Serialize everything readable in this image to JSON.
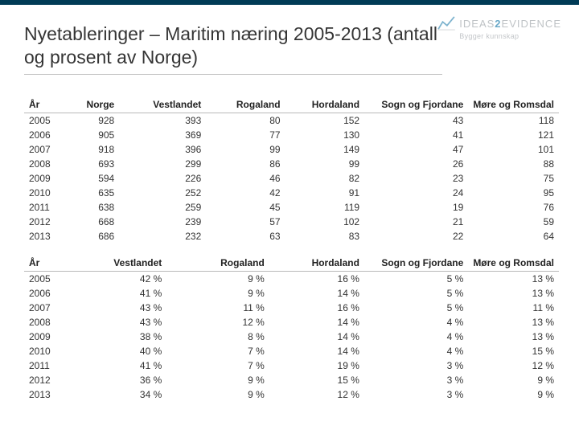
{
  "brand": {
    "name_a": "IDEAS",
    "name_b": "2",
    "name_c": "EVIDENCE",
    "tagline": "Bygger kunnskap",
    "logo_stroke": "#7fb4cf",
    "topbar_color": "#003b56"
  },
  "title": "Nyetableringer – Maritim næring 2005-2013 (antall og prosent av Norge)",
  "table1": {
    "columns": [
      "År",
      "Norge",
      "Vestlandet",
      "Rogaland",
      "Hordaland",
      "Sogn og Fjordane",
      "Møre og Romsdal"
    ],
    "rows": [
      [
        "2005",
        "928",
        "393",
        "80",
        "152",
        "43",
        "118"
      ],
      [
        "2006",
        "905",
        "369",
        "77",
        "130",
        "41",
        "121"
      ],
      [
        "2007",
        "918",
        "396",
        "99",
        "149",
        "47",
        "101"
      ],
      [
        "2008",
        "693",
        "299",
        "86",
        "99",
        "26",
        "88"
      ],
      [
        "2009",
        "594",
        "226",
        "46",
        "82",
        "23",
        "75"
      ],
      [
        "2010",
        "635",
        "252",
        "42",
        "91",
        "24",
        "95"
      ],
      [
        "2011",
        "638",
        "259",
        "45",
        "119",
        "19",
        "76"
      ],
      [
        "2012",
        "668",
        "239",
        "57",
        "102",
        "21",
        "59"
      ],
      [
        "2013",
        "686",
        "232",
        "63",
        "83",
        "22",
        "64"
      ]
    ],
    "col_widths": [
      "60px",
      "60px",
      "110px",
      "100px",
      "100px",
      "130px",
      "auto"
    ]
  },
  "table2": {
    "columns": [
      "År",
      "Vestlandet",
      "Rogaland",
      "Hordaland",
      "Sogn og Fjordane",
      "Møre og Romsdal"
    ],
    "rows": [
      [
        "2005",
        "42 %",
        "9 %",
        "16 %",
        "5 %",
        "13 %"
      ],
      [
        "2006",
        "41 %",
        "9 %",
        "14 %",
        "5 %",
        "13 %"
      ],
      [
        "2007",
        "43 %",
        "11 %",
        "16 %",
        "5 %",
        "11 %"
      ],
      [
        "2008",
        "43 %",
        "12 %",
        "14 %",
        "4 %",
        "13 %"
      ],
      [
        "2009",
        "38 %",
        "8 %",
        "14 %",
        "4 %",
        "13 %"
      ],
      [
        "2010",
        "40 %",
        "7 %",
        "14 %",
        "4 %",
        "15 %"
      ],
      [
        "2011",
        "41 %",
        "7 %",
        "19 %",
        "3 %",
        "12 %"
      ],
      [
        "2012",
        "36 %",
        "9 %",
        "15 %",
        "3 %",
        "9 %"
      ],
      [
        "2013",
        "34 %",
        "9 %",
        "12 %",
        "3 %",
        "9 %"
      ]
    ],
    "col_widths": [
      "60px",
      "120px",
      "130px",
      "120px",
      "130px",
      "auto"
    ]
  },
  "style": {
    "title_fontsize": 23,
    "cell_fontsize": 12,
    "header_border": "#b9b9b9",
    "text_color": "#333333",
    "bg": "#ffffff"
  }
}
